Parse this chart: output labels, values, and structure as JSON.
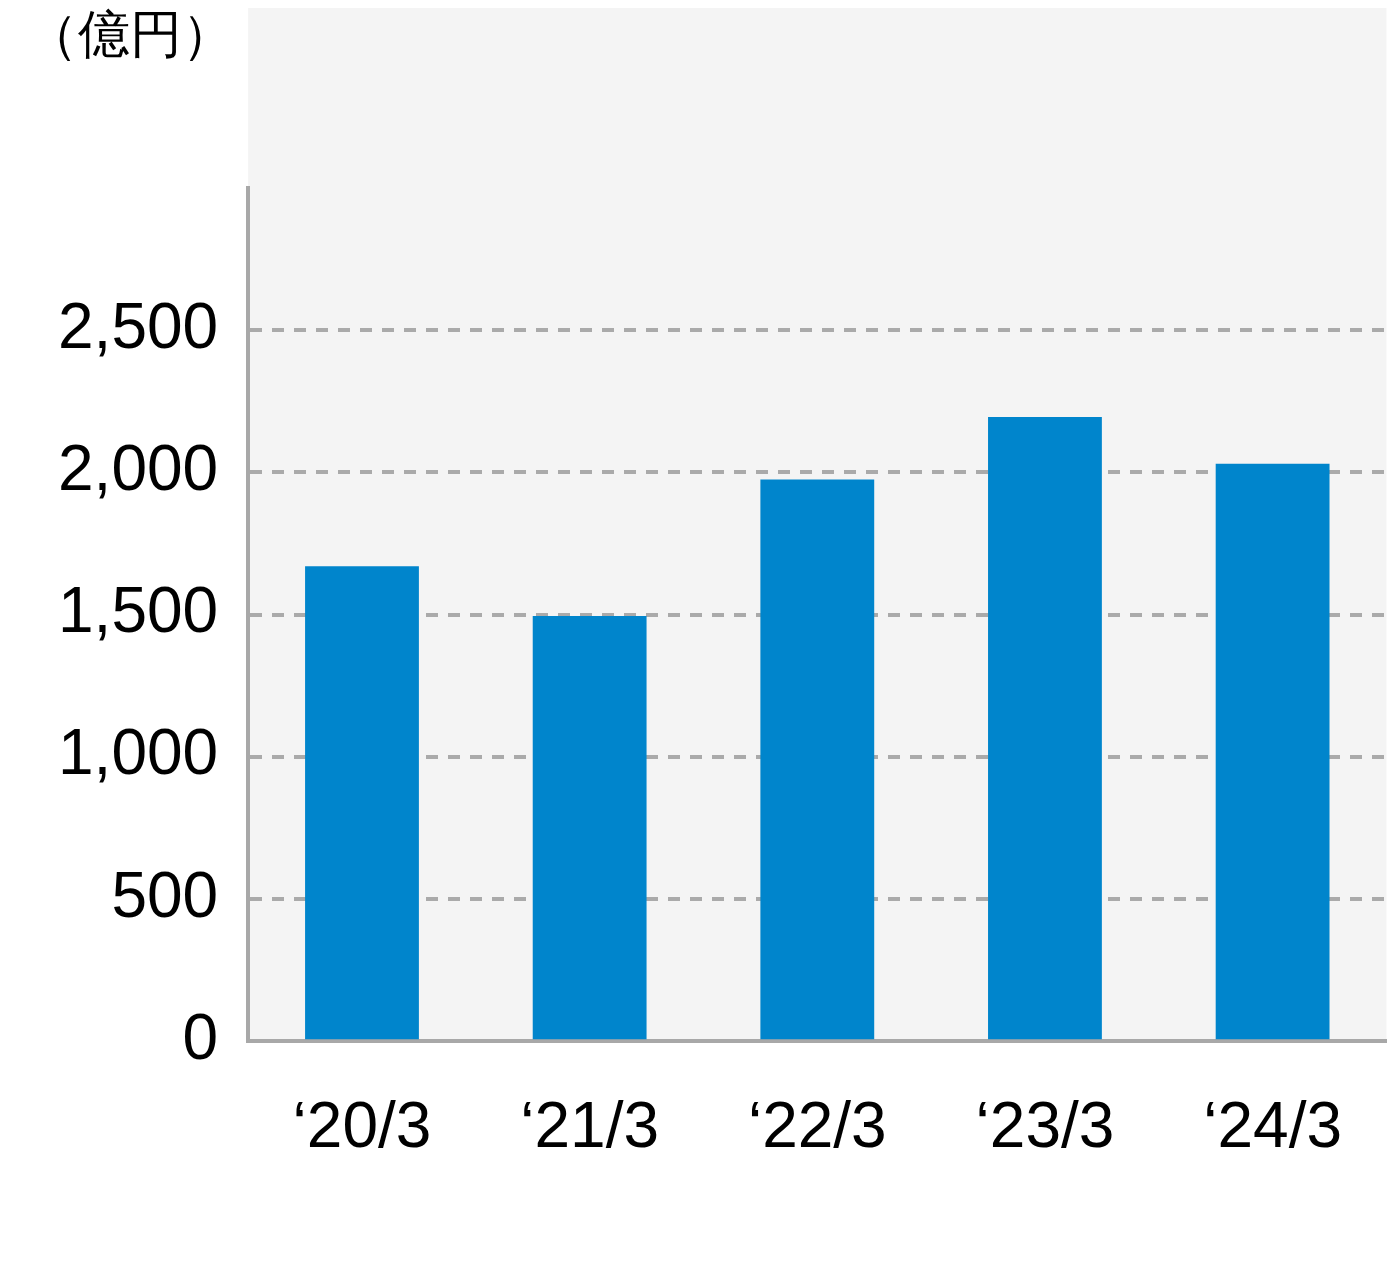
{
  "chart_data": {
    "type": "bar",
    "ylabel": "（億円）",
    "categories": [
      "‘20/3",
      "‘21/3",
      "‘22/3",
      "‘23/3",
      "‘24/3"
    ],
    "values": [
      1670,
      1495,
      1975,
      2195,
      2030
    ],
    "color": "#0085cc",
    "ylim": [
      0,
      3000
    ],
    "yticks": [
      {
        "value": 0,
        "label": "0"
      },
      {
        "value": 500,
        "label": "500"
      },
      {
        "value": 1000,
        "label": "1,000"
      },
      {
        "value": 1500,
        "label": "1,500"
      },
      {
        "value": 2000,
        "label": "2,000"
      },
      {
        "value": 2500,
        "label": "2,500"
      }
    ],
    "grid": "y",
    "legend": false
  }
}
